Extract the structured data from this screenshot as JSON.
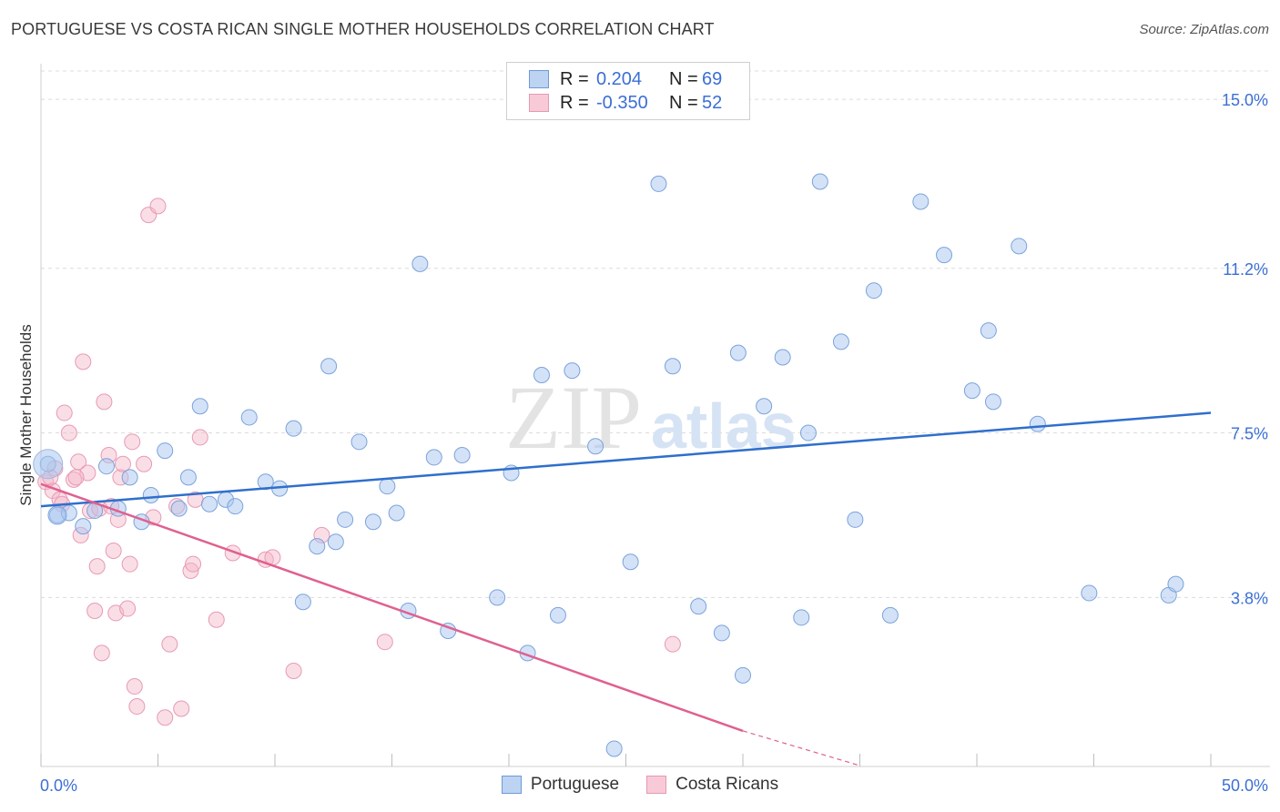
{
  "title": "PORTUGUESE VS COSTA RICAN SINGLE MOTHER HOUSEHOLDS CORRELATION CHART",
  "source": "Source: ZipAtlas.com",
  "watermark": {
    "zip": "ZIP",
    "atlas": "atlas"
  },
  "legend": {
    "rows": [
      {
        "r_label": "R =",
        "r_value": "0.204",
        "n_label": "N =",
        "n_value": "69"
      },
      {
        "r_label": "R =",
        "r_value": "-0.350",
        "n_label": "N =",
        "n_value": "52"
      }
    ]
  },
  "bottom_legend": [
    "Portuguese",
    "Costa Ricans"
  ],
  "chart_data": {
    "type": "scatter",
    "xlabel": "",
    "ylabel": "Single Mother Households",
    "xlim": [
      0,
      50
    ],
    "ylim": [
      0,
      15.8
    ],
    "x_tick_labels": [
      "0.0%",
      "50.0%"
    ],
    "y_ticks": [
      3.8,
      7.5,
      11.2,
      15.0
    ],
    "y_tick_labels": [
      "3.8%",
      "7.5%",
      "11.2%",
      "15.0%"
    ],
    "colors": {
      "portuguese": "#a9c6ef",
      "portuguese_line": "#2f6fcc",
      "costa": "#f4b6c8",
      "costa_line": "#e0608f",
      "tick_text": "#3b6fd4"
    },
    "series": [
      {
        "name": "Portuguese",
        "trend": {
          "x": [
            0,
            50
          ],
          "y": [
            5.85,
            7.95
          ]
        },
        "points": [
          [
            0.3,
            6.8
          ],
          [
            0.7,
            5.65
          ],
          [
            1.2,
            5.7
          ],
          [
            1.8,
            5.4
          ],
          [
            2.3,
            5.75
          ],
          [
            2.8,
            6.75
          ],
          [
            3.3,
            5.8
          ],
          [
            3.8,
            6.5
          ],
          [
            4.3,
            5.5
          ],
          [
            4.7,
            6.1
          ],
          [
            5.3,
            7.1
          ],
          [
            5.9,
            5.8
          ],
          [
            6.3,
            6.5
          ],
          [
            6.8,
            8.1
          ],
          [
            7.2,
            5.9
          ],
          [
            7.9,
            6.0
          ],
          [
            8.3,
            5.85
          ],
          [
            8.9,
            7.85
          ],
          [
            9.6,
            6.4
          ],
          [
            10.2,
            6.25
          ],
          [
            10.8,
            7.6
          ],
          [
            11.2,
            3.7
          ],
          [
            11.8,
            4.95
          ],
          [
            12.3,
            9.0
          ],
          [
            12.6,
            5.05
          ],
          [
            13.0,
            5.55
          ],
          [
            13.6,
            7.3
          ],
          [
            14.2,
            5.5
          ],
          [
            14.8,
            6.3
          ],
          [
            15.2,
            5.7
          ],
          [
            15.7,
            3.5
          ],
          [
            16.2,
            11.3
          ],
          [
            16.8,
            6.95
          ],
          [
            17.4,
            3.05
          ],
          [
            18.0,
            7.0
          ],
          [
            19.5,
            3.8
          ],
          [
            20.1,
            6.6
          ],
          [
            20.8,
            2.55
          ],
          [
            21.4,
            8.8
          ],
          [
            22.1,
            3.4
          ],
          [
            22.7,
            8.9
          ],
          [
            23.7,
            7.2
          ],
          [
            24.5,
            0.4
          ],
          [
            25.2,
            4.6
          ],
          [
            26.4,
            13.1
          ],
          [
            27.0,
            9.0
          ],
          [
            28.1,
            3.6
          ],
          [
            29.1,
            3.0
          ],
          [
            29.8,
            9.3
          ],
          [
            30.0,
            2.05
          ],
          [
            30.9,
            8.1
          ],
          [
            31.7,
            9.2
          ],
          [
            32.5,
            3.35
          ],
          [
            33.3,
            13.15
          ],
          [
            32.8,
            7.5
          ],
          [
            34.2,
            9.55
          ],
          [
            34.8,
            5.55
          ],
          [
            35.6,
            10.7
          ],
          [
            36.3,
            3.4
          ],
          [
            37.6,
            12.7
          ],
          [
            38.6,
            11.5
          ],
          [
            39.8,
            8.45
          ],
          [
            40.5,
            9.8
          ],
          [
            40.7,
            8.2
          ],
          [
            41.8,
            11.7
          ],
          [
            42.6,
            7.7
          ],
          [
            44.8,
            3.9
          ],
          [
            48.2,
            3.85
          ],
          [
            48.5,
            4.1
          ]
        ]
      },
      {
        "name": "Costa Ricans",
        "trend": {
          "x": [
            0,
            30.0,
            35.0
          ],
          "y": [
            6.35,
            0.8,
            -0.1
          ]
        },
        "points": [
          [
            0.2,
            6.4
          ],
          [
            0.5,
            6.2
          ],
          [
            0.6,
            6.7
          ],
          [
            0.8,
            6.0
          ],
          [
            1.0,
            7.95
          ],
          [
            1.2,
            7.5
          ],
          [
            1.4,
            6.45
          ],
          [
            1.6,
            6.85
          ],
          [
            1.7,
            5.2
          ],
          [
            1.8,
            9.1
          ],
          [
            2.0,
            6.6
          ],
          [
            2.1,
            5.75
          ],
          [
            2.3,
            3.5
          ],
          [
            2.4,
            4.5
          ],
          [
            2.5,
            5.8
          ],
          [
            2.6,
            2.55
          ],
          [
            2.7,
            8.2
          ],
          [
            2.9,
            7.0
          ],
          [
            3.0,
            5.85
          ],
          [
            3.1,
            4.85
          ],
          [
            3.2,
            3.45
          ],
          [
            3.3,
            5.55
          ],
          [
            3.4,
            6.5
          ],
          [
            3.5,
            6.8
          ],
          [
            3.7,
            3.55
          ],
          [
            3.8,
            4.55
          ],
          [
            3.9,
            7.3
          ],
          [
            4.0,
            1.8
          ],
          [
            4.1,
            1.35
          ],
          [
            4.4,
            6.8
          ],
          [
            4.6,
            12.4
          ],
          [
            4.8,
            5.6
          ],
          [
            5.0,
            12.6
          ],
          [
            5.3,
            1.1
          ],
          [
            5.5,
            2.75
          ],
          [
            5.8,
            5.85
          ],
          [
            6.0,
            1.3
          ],
          [
            6.4,
            4.4
          ],
          [
            6.5,
            4.55
          ],
          [
            6.6,
            6.0
          ],
          [
            6.8,
            7.4
          ],
          [
            7.5,
            3.3
          ],
          [
            8.2,
            4.8
          ],
          [
            9.6,
            4.65
          ],
          [
            9.9,
            4.7
          ],
          [
            10.8,
            2.15
          ],
          [
            12.0,
            5.2
          ],
          [
            14.7,
            2.8
          ],
          [
            27.0,
            2.75
          ],
          [
            0.4,
            6.5
          ],
          [
            0.9,
            5.9
          ],
          [
            1.5,
            6.5
          ]
        ]
      }
    ]
  }
}
